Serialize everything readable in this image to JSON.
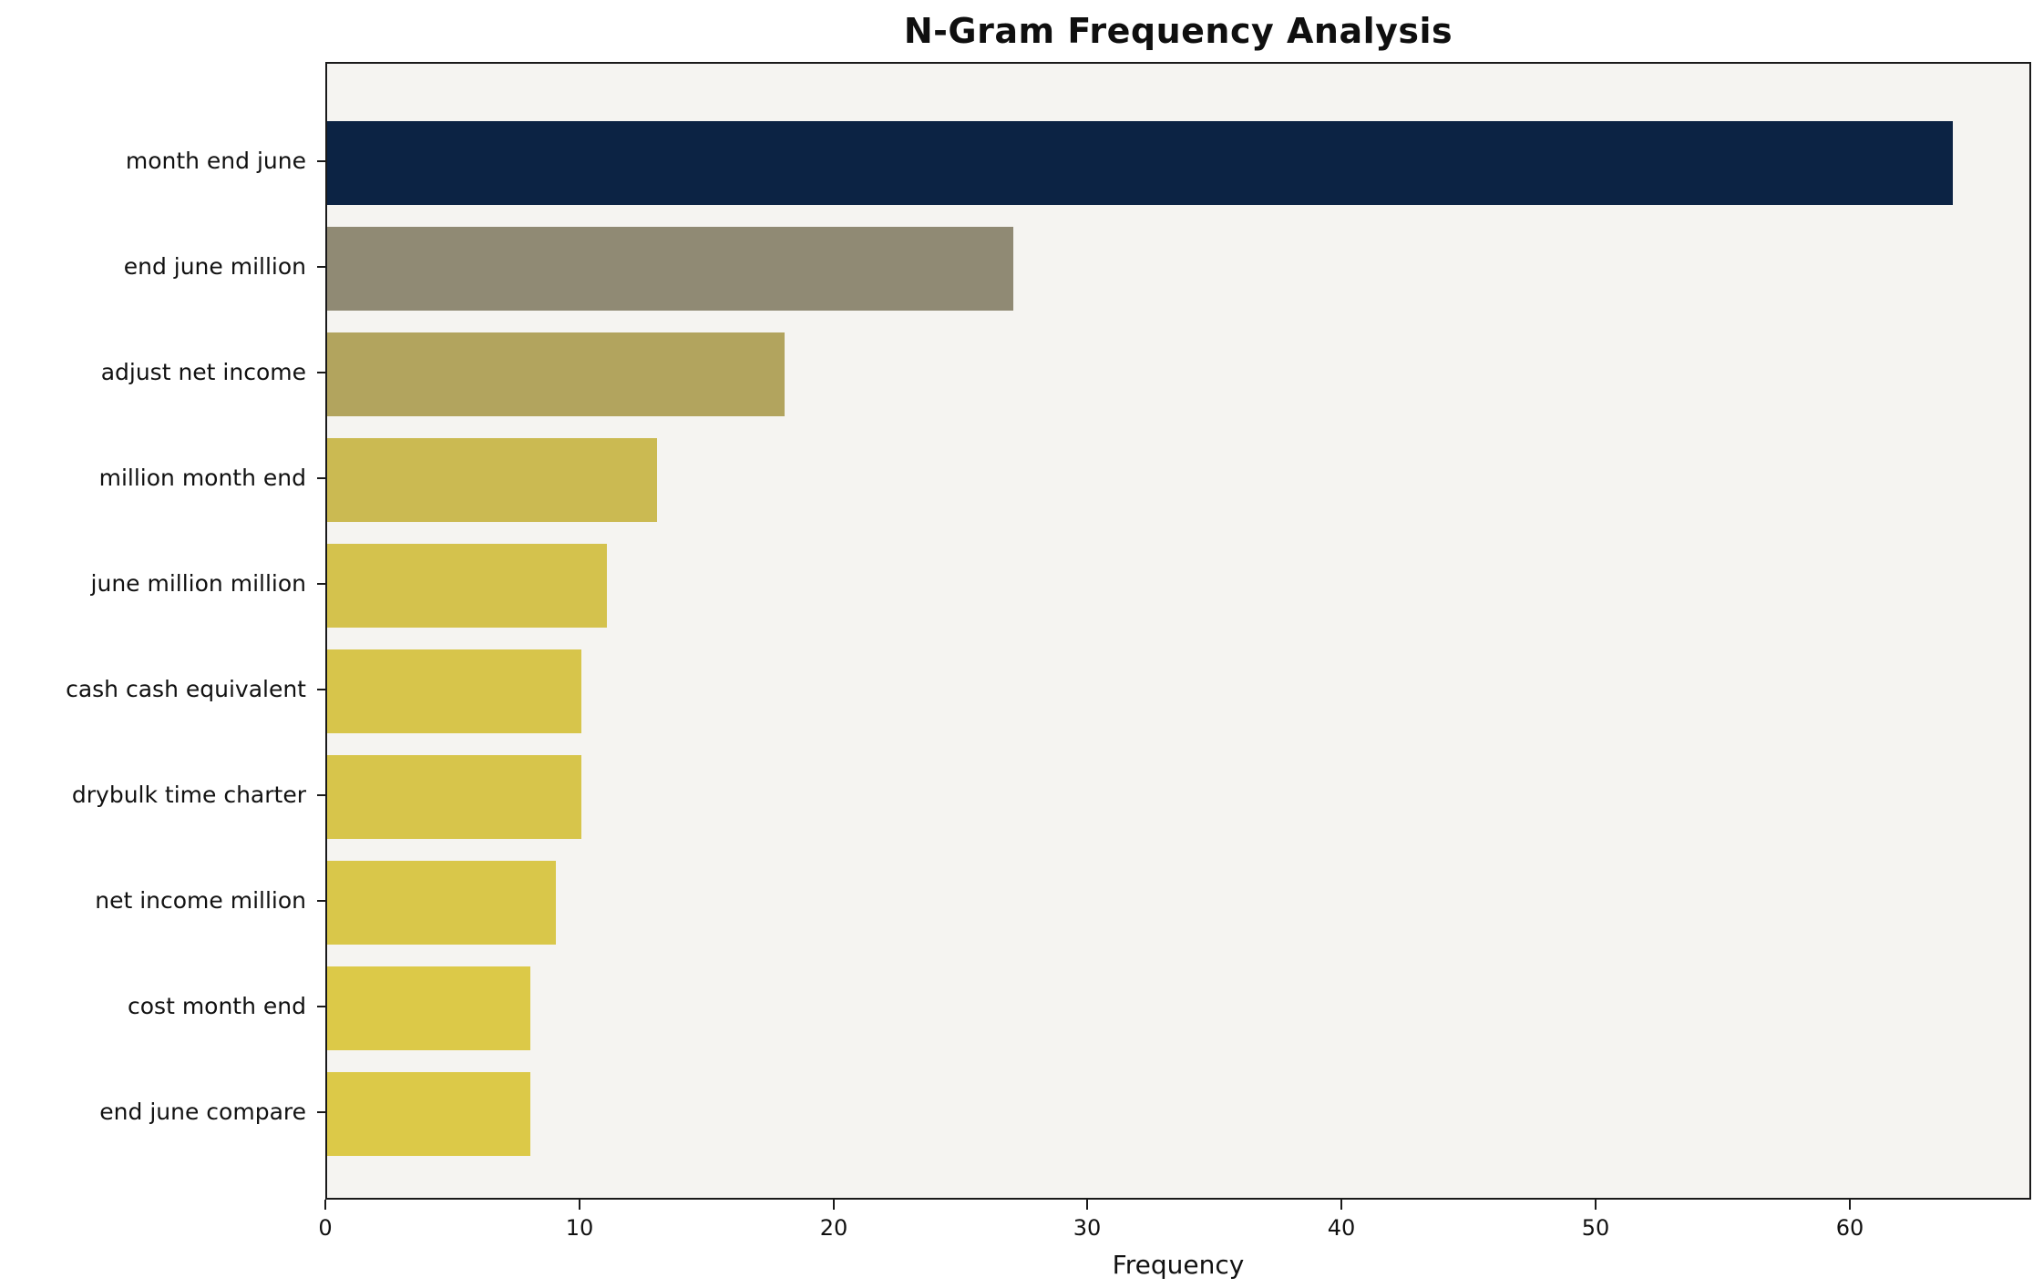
{
  "chart_data": {
    "type": "bar",
    "orientation": "horizontal",
    "title": "N-Gram Frequency Analysis",
    "xlabel": "Frequency",
    "ylabel": "",
    "xlim": [
      0,
      67
    ],
    "xticks": [
      0,
      10,
      20,
      30,
      40,
      50,
      60
    ],
    "grid": false,
    "legend": "none",
    "categories": [
      "month end june",
      "end june million",
      "adjust net income",
      "million month end",
      "june million million",
      "cash cash equivalent",
      "drybulk time charter",
      "net income million",
      "cost month end",
      "end june compare"
    ],
    "values": [
      64,
      27,
      18,
      13,
      11,
      10,
      10,
      9,
      8,
      8
    ],
    "bar_colors": [
      "#0c2344",
      "#908a74",
      "#b2a45e",
      "#cbba52",
      "#d4c24d",
      "#d7c54b",
      "#d7c54b",
      "#d9c74a",
      "#dcc948",
      "#dcc948"
    ],
    "plot_background": "#f5f4f1",
    "figure_background": "#ffffff",
    "axis_color": "#1a1a1a"
  }
}
